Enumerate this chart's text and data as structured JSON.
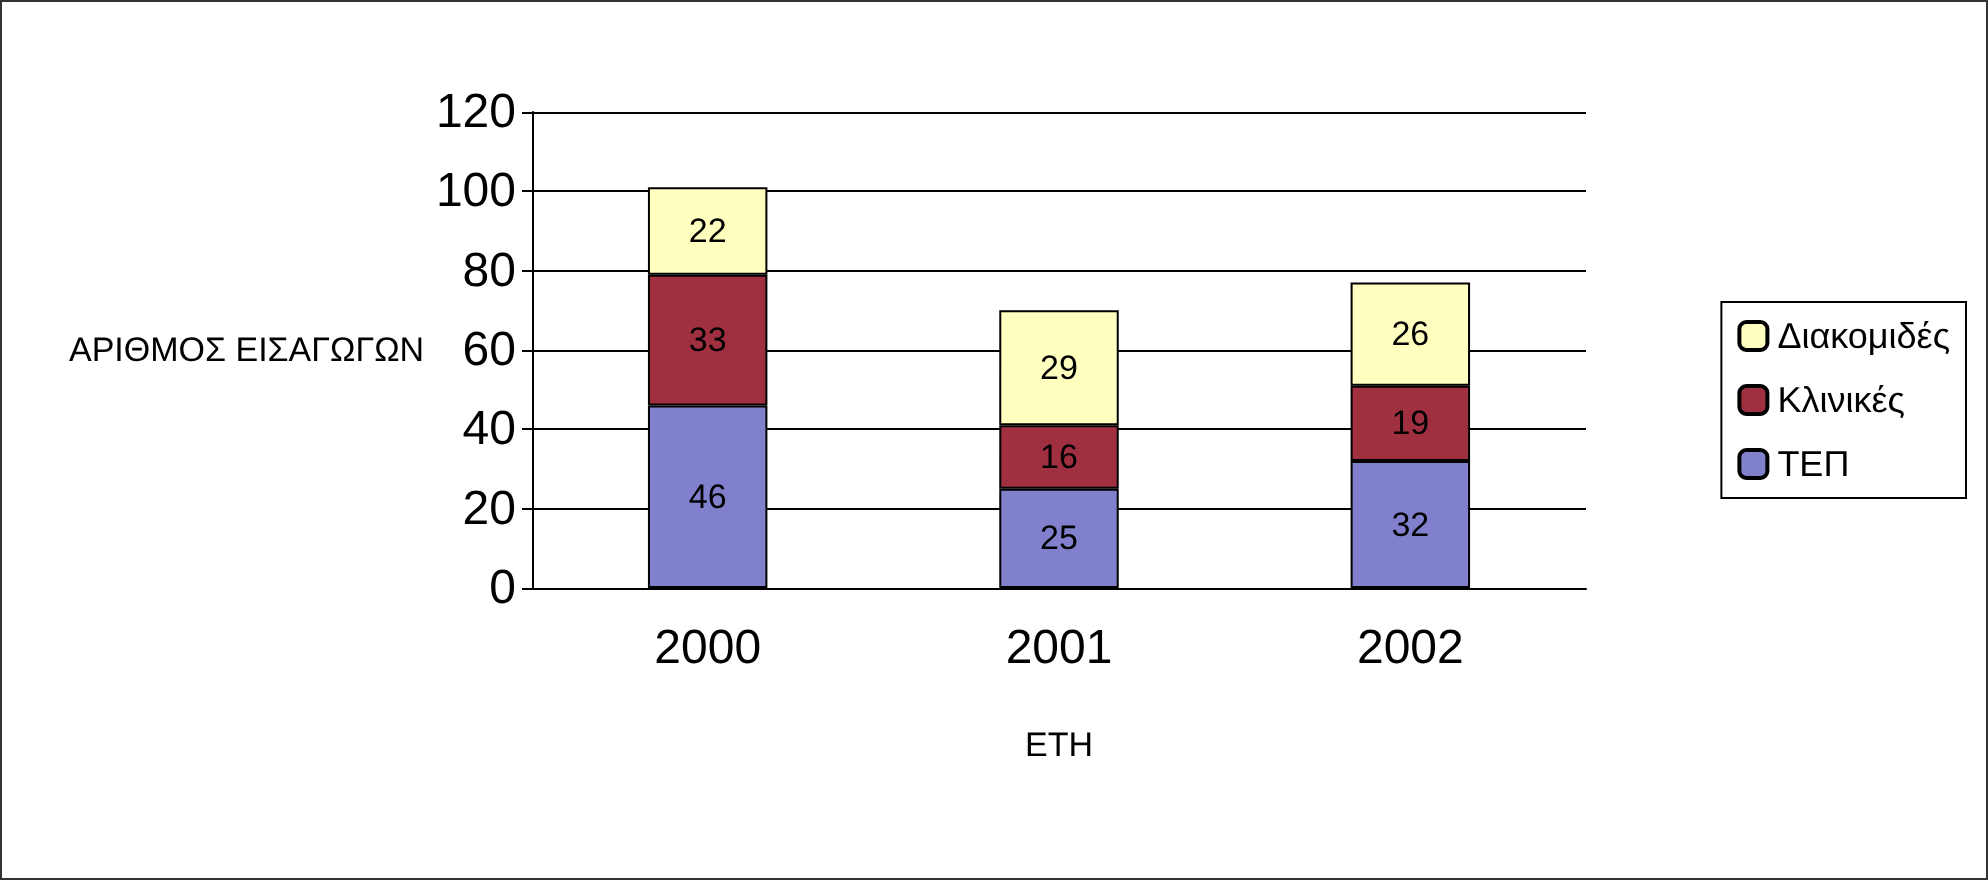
{
  "chart_data": {
    "type": "bar",
    "stacked": true,
    "xlabel": "ΕΤΗ",
    "ylabel": "ΑΡΙΘΜΟΣ ΕΙΣΑΓΩΓΩΝ",
    "categories": [
      "2000",
      "2001",
      "2002"
    ],
    "series": [
      {
        "name": "ΤΕΠ",
        "color": "#8080cc",
        "values": [
          46,
          25,
          32
        ]
      },
      {
        "name": "Κλινικές",
        "color": "#a03040",
        "values": [
          33,
          16,
          19
        ]
      },
      {
        "name": "Διακομιδές",
        "color": "#ffffc0",
        "values": [
          22,
          29,
          26
        ]
      }
    ],
    "ylim": [
      0,
      120
    ],
    "yticks": [
      0,
      20,
      40,
      60,
      80,
      100,
      120
    ],
    "grid": "y",
    "legend": "right",
    "data_labels": true
  }
}
